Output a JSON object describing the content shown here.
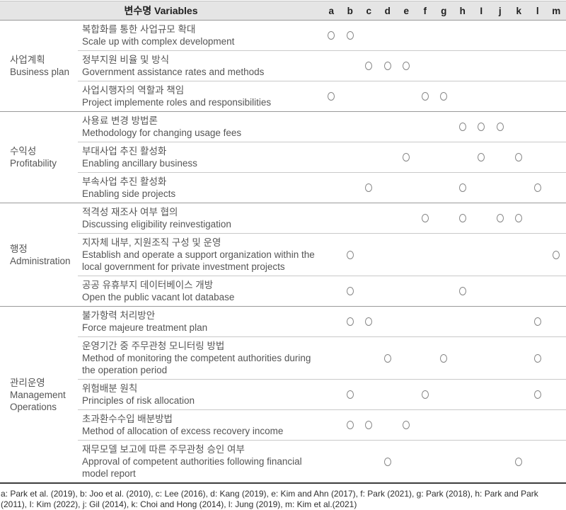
{
  "header": {
    "variables_label": "변수명 Variables",
    "columns": [
      "a",
      "b",
      "c",
      "d",
      "e",
      "f",
      "g",
      "h",
      "I",
      "j",
      "k",
      "l",
      "m"
    ]
  },
  "groups": [
    {
      "label_ko": "사업계획",
      "label_en": "Business plan",
      "rows": [
        {
          "ko": "복합화를 통한 사업규모 확대",
          "en": "Scale up with complex development",
          "marks": [
            "a",
            "b"
          ]
        },
        {
          "ko": "정부지원 비율 및 방식",
          "en": "Government assistance rates and methods",
          "marks": [
            "c",
            "d",
            "e"
          ]
        },
        {
          "ko": "사업시행자의 역할과 책임",
          "en": "Project implemente roles and responsibilities",
          "marks": [
            "a",
            "f",
            "g"
          ]
        }
      ]
    },
    {
      "label_ko": "수익성",
      "label_en": "Profitability",
      "rows": [
        {
          "ko": "사용료 변경 방법론",
          "en": "Methodology for changing usage fees",
          "marks": [
            "h",
            "I",
            "j"
          ]
        },
        {
          "ko": "부대사업 추진 활성화",
          "en": "Enabling ancillary business",
          "marks": [
            "e",
            "I",
            "k"
          ]
        },
        {
          "ko": "부속사업 추진 활성화",
          "en": "Enabling side projects",
          "marks": [
            "c",
            "h",
            "l"
          ]
        }
      ]
    },
    {
      "label_ko": "행정",
      "label_en": "Administration",
      "rows": [
        {
          "ko": "적격성 재조사 여부 협의",
          "en": "Discussing eligibility reinvestigation",
          "marks": [
            "f",
            "h",
            "j",
            "k"
          ]
        },
        {
          "ko": "지자체 내부, 지원조직 구성 및 운영",
          "en": "Establish and operate a support organization within the local government for private investment projects",
          "marks": [
            "b",
            "m"
          ]
        },
        {
          "ko": "공공 유휴부지 데이터베이스 개방",
          "en": "Open the public vacant lot database",
          "marks": [
            "b",
            "h"
          ]
        }
      ]
    },
    {
      "label_ko": "관리운영",
      "label_en": "Management Operations",
      "rows": [
        {
          "ko": "불가항력 처리방안",
          "en": "Force majeure treatment plan",
          "marks": [
            "b",
            "c",
            "l"
          ]
        },
        {
          "ko": "운영기간 중 주무관청 모니터링 방법",
          "en": "Method of monitoring the competent authorities during the operation period",
          "marks": [
            "d",
            "g",
            "l"
          ]
        },
        {
          "ko": "위험배분 원칙",
          "en": "Principles of risk allocation",
          "marks": [
            "b",
            "f",
            "l"
          ]
        },
        {
          "ko": "초과환수수입 배분방법",
          "en": "Method of allocation of excess recovery income",
          "marks": [
            "b",
            "c",
            "e"
          ]
        },
        {
          "ko": "재무모델 보고에 따른 주무관청 승인 여부",
          "en": "Approval of competent authorities following financial model report",
          "marks": [
            "d",
            "k"
          ]
        }
      ]
    }
  ],
  "footnote": "a: Park et al. (2019), b: Joo et al. (2010), c: Lee (2016), d: Kang (2019), e: Kim and Ahn (2017), f: Park (2021), g: Park (2018), h: Park and Park (2011), I: Kim (2022), j: Gil (2014), k: Choi and Hong (2014), l: Jung (2019), m: Kim et al.(2021)",
  "colors": {
    "header_bg": "#e5e5e5",
    "header_text": "#1f1f1f",
    "body_text": "#555555",
    "group_separator": "#9a9a9a",
    "row_separator": "#c9c9c9",
    "bottom_rule": "#3d3d3d",
    "circle_stroke": "#848484"
  }
}
